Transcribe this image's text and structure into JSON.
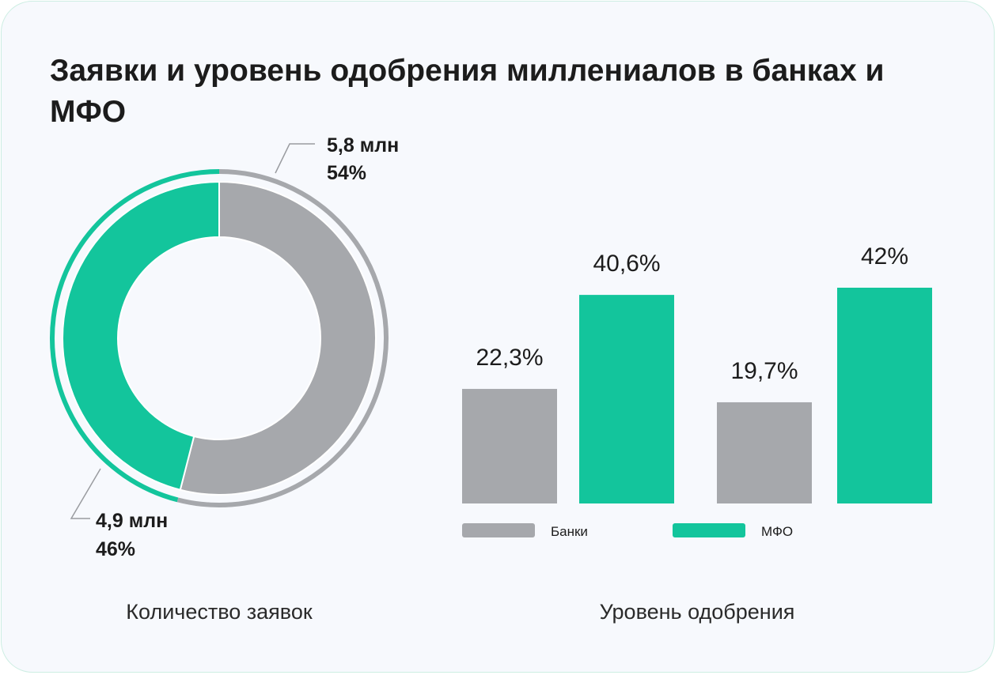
{
  "title": "Заявки и уровень одобрения миллениалов в банках и МФО",
  "colors": {
    "banks": "#a6a8ac",
    "mfo": "#13c59c",
    "background": "#f7f9fd"
  },
  "chart_data": [
    {
      "type": "pie",
      "caption": "Количество заявок",
      "slices": [
        {
          "name": "Банки",
          "value": 5.8,
          "value_label": "5,8 млн",
          "percent": 54,
          "percent_label": "54%"
        },
        {
          "name": "МФО",
          "value": 4.9,
          "value_label": "4,9 млн",
          "percent": 46,
          "percent_label": "46%"
        }
      ]
    },
    {
      "type": "bar",
      "caption": "Уровень одобрения",
      "series": [
        {
          "name": "Банки",
          "values": [
            22.3,
            19.7
          ],
          "labels": [
            "22,3%",
            "19,7%"
          ]
        },
        {
          "name": "МФО",
          "values": [
            40.6,
            42
          ],
          "labels": [
            "40,6%",
            "42%"
          ]
        }
      ],
      "legend": [
        "Банки",
        "МФО"
      ],
      "legend_position": "bottom"
    }
  ]
}
